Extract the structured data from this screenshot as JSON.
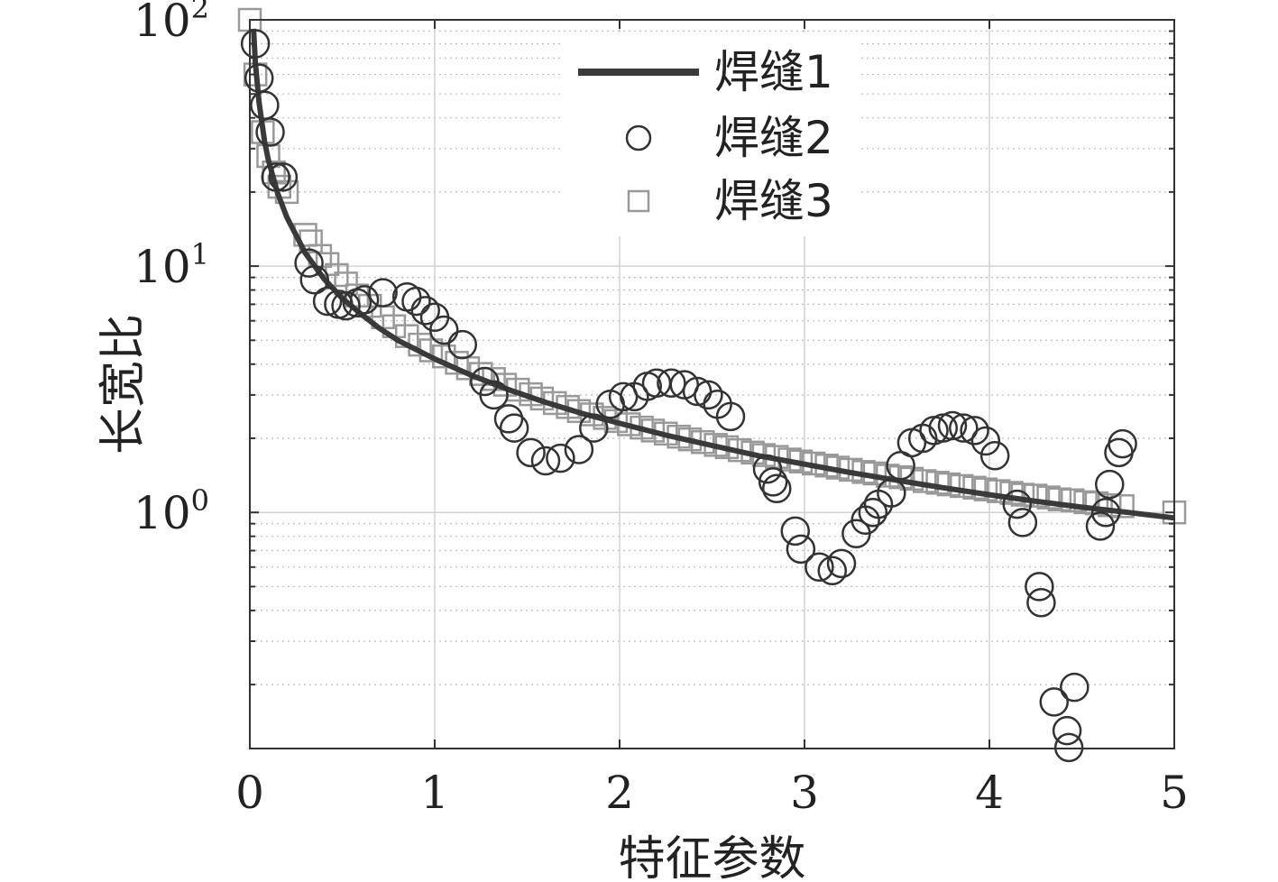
{
  "chart_data": {
    "type": "scatter",
    "xlabel": "特征参数",
    "ylabel": "长宽比",
    "xlim": [
      0,
      5
    ],
    "ylim": [
      0.11,
      100
    ],
    "y_scale": "log",
    "grid": true,
    "legend_placement": "top-center",
    "x_ticks": [
      "0",
      "1",
      "2",
      "3",
      "4",
      "5"
    ],
    "y_ticks": [
      {
        "base": "10",
        "exp": "2"
      },
      {
        "base": "10",
        "exp": "1"
      },
      {
        "base": "10",
        "exp": "0"
      }
    ],
    "series": [
      {
        "name": "焊缝1",
        "style": "line",
        "color": "#3a3a3a",
        "x": [
          0.02,
          0.03,
          0.05,
          0.08,
          0.1,
          0.15,
          0.2,
          0.3,
          0.4,
          0.5,
          0.6,
          0.7,
          0.8,
          1.0,
          1.2,
          1.4,
          1.6,
          1.8,
          2.0,
          2.25,
          2.5,
          2.75,
          3.0,
          3.25,
          3.5,
          3.75,
          4.0,
          4.25,
          4.5,
          4.75,
          5.0
        ],
        "y": [
          92,
          67,
          46,
          32,
          27,
          19.8,
          15.8,
          11.3,
          8.9,
          7.4,
          6.4,
          5.6,
          5.0,
          4.2,
          3.6,
          3.15,
          2.8,
          2.52,
          2.3,
          2.06,
          1.87,
          1.7,
          1.57,
          1.45,
          1.35,
          1.26,
          1.18,
          1.11,
          1.05,
          1.0,
          0.95
        ]
      },
      {
        "name": "焊缝2",
        "style": "circle",
        "color": "#333333",
        "x": [
          0.03,
          0.05,
          0.08,
          0.11,
          0.14,
          0.18,
          0.32,
          0.35,
          0.42,
          0.48,
          0.52,
          0.58,
          0.62,
          0.72,
          0.85,
          0.9,
          0.95,
          1.0,
          1.05,
          1.15,
          1.27,
          1.32,
          1.4,
          1.43,
          1.52,
          1.6,
          1.68,
          1.78,
          1.86,
          1.95,
          2.02,
          2.08,
          2.15,
          2.2,
          2.28,
          2.35,
          2.42,
          2.48,
          2.53,
          2.6,
          2.8,
          2.83,
          2.85,
          2.95,
          2.98,
          3.08,
          3.15,
          3.2,
          3.28,
          3.33,
          3.37,
          3.4,
          3.47,
          3.52,
          3.58,
          3.64,
          3.7,
          3.75,
          3.8,
          3.86,
          3.92,
          3.98,
          4.03,
          4.15,
          4.18,
          4.27,
          4.28,
          4.35,
          4.42,
          4.43,
          4.46,
          4.6,
          4.63,
          4.65,
          4.7,
          4.72
        ],
        "y": [
          80,
          58,
          45,
          35,
          23,
          23,
          10.3,
          8.8,
          7.2,
          7.0,
          6.9,
          7.1,
          7.3,
          7.8,
          7.5,
          7.2,
          6.6,
          6.2,
          5.5,
          4.8,
          3.4,
          3.0,
          2.4,
          2.2,
          1.75,
          1.62,
          1.66,
          1.8,
          2.2,
          2.75,
          2.95,
          2.95,
          3.25,
          3.35,
          3.35,
          3.3,
          3.1,
          3.0,
          2.75,
          2.45,
          1.5,
          1.33,
          1.25,
          0.84,
          0.71,
          0.6,
          0.58,
          0.62,
          0.82,
          0.93,
          1.0,
          1.08,
          1.2,
          1.55,
          1.92,
          2.0,
          2.15,
          2.2,
          2.25,
          2.2,
          2.15,
          1.95,
          1.7,
          1.08,
          0.91,
          0.5,
          0.43,
          0.17,
          0.13,
          0.111,
          0.195,
          0.88,
          1.0,
          1.3,
          1.75,
          1.9
        ]
      },
      {
        "name": "焊缝3",
        "style": "square",
        "color": "#999999",
        "x": [
          0.0,
          0.03,
          0.07,
          0.1,
          0.13,
          0.16,
          0.2,
          0.3,
          0.33,
          0.38,
          0.42,
          0.47,
          0.52,
          0.58,
          0.65,
          0.72,
          0.78,
          0.85,
          0.92,
          0.98,
          1.05,
          1.12,
          1.18,
          1.25,
          1.32,
          1.38,
          1.45,
          1.52,
          1.58,
          1.65,
          1.72,
          1.78,
          1.85,
          1.92,
          1.98,
          2.05,
          2.12,
          2.18,
          2.25,
          2.32,
          2.38,
          2.45,
          2.52,
          2.58,
          2.65,
          2.72,
          2.78,
          2.85,
          2.92,
          2.98,
          3.05,
          3.12,
          3.18,
          3.25,
          3.32,
          3.38,
          3.45,
          3.52,
          3.58,
          3.65,
          3.72,
          3.78,
          3.85,
          3.92,
          3.98,
          4.05,
          4.12,
          4.18,
          4.25,
          4.32,
          4.38,
          4.45,
          4.52,
          4.58,
          4.65,
          4.72,
          5.0
        ],
        "y": [
          100,
          60,
          35,
          28,
          24,
          21,
          20,
          13.4,
          12.6,
          11.0,
          10.2,
          9.2,
          8.5,
          7.6,
          6.9,
          6.2,
          5.7,
          5.2,
          4.8,
          4.55,
          4.3,
          4.05,
          3.85,
          3.65,
          3.48,
          3.3,
          3.15,
          3.02,
          2.9,
          2.78,
          2.68,
          2.58,
          2.5,
          2.42,
          2.35,
          2.28,
          2.21,
          2.15,
          2.09,
          2.03,
          1.98,
          1.93,
          1.88,
          1.84,
          1.79,
          1.75,
          1.71,
          1.68,
          1.64,
          1.61,
          1.58,
          1.55,
          1.52,
          1.49,
          1.46,
          1.44,
          1.41,
          1.39,
          1.37,
          1.34,
          1.32,
          1.3,
          1.28,
          1.26,
          1.24,
          1.22,
          1.2,
          1.18,
          1.17,
          1.15,
          1.13,
          1.12,
          1.1,
          1.09,
          1.07,
          1.06,
          1.0
        ]
      }
    ]
  }
}
